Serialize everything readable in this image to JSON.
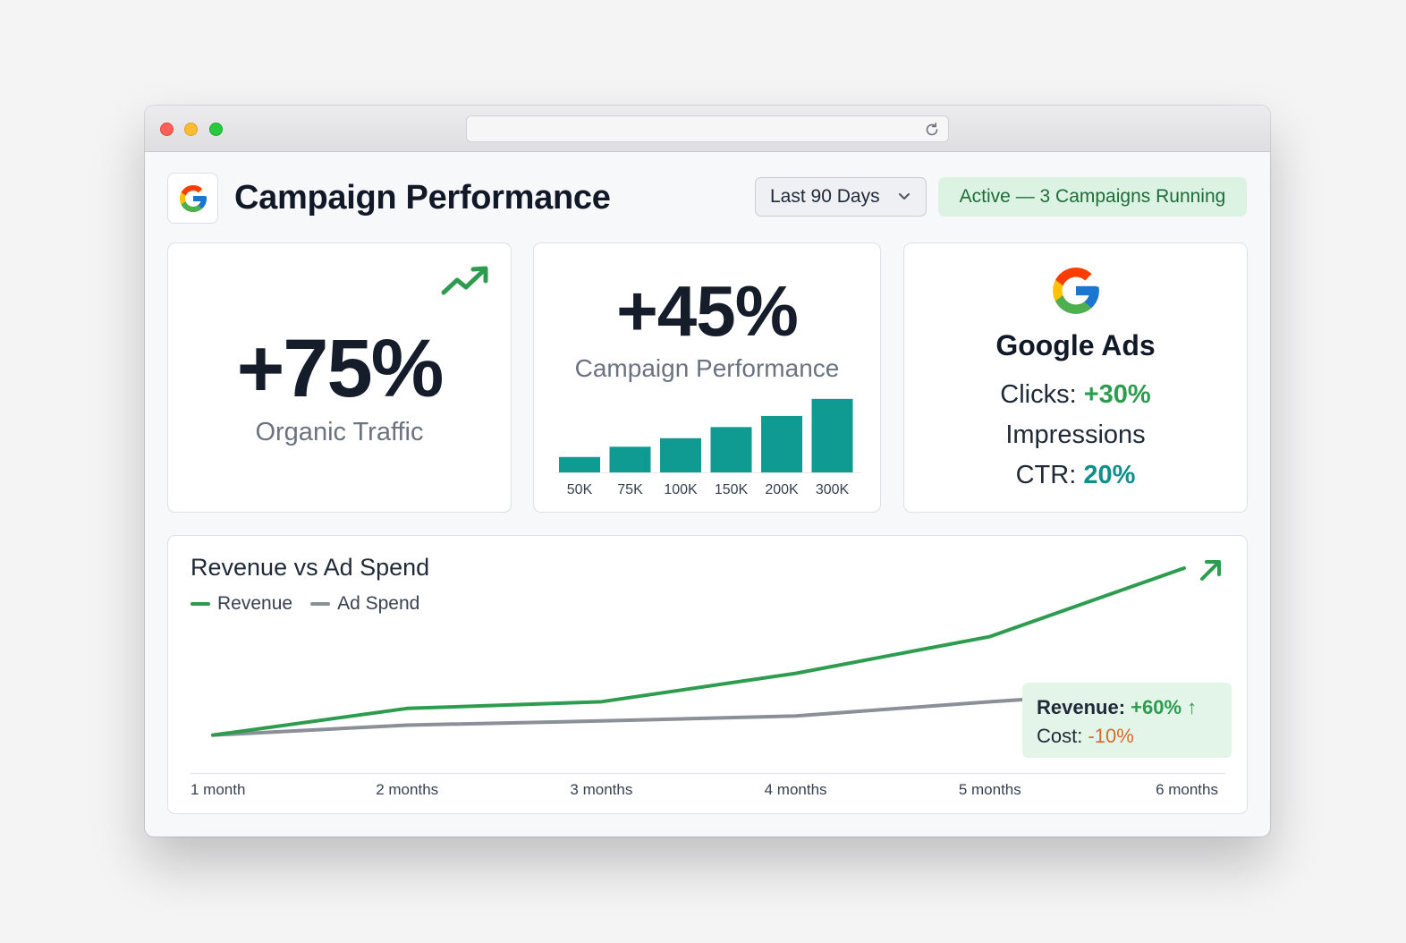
{
  "header": {
    "title": "Campaign Performance",
    "date_range": "Last 90 Days",
    "status": "Active — 3 Campaigns Running"
  },
  "organic": {
    "value": "+75%",
    "label": "Organic Traffic"
  },
  "campaign": {
    "value": "+45%",
    "label": "Campaign Performance"
  },
  "google_ads": {
    "brand": "Google Ads",
    "clicks_label": "Clicks: ",
    "clicks_value": "+30%",
    "impressions_label": "Impressions",
    "ctr_label": "CTR: ",
    "ctr_value": "20%"
  },
  "revenue_chart": {
    "title": "Revenue vs Ad Spend",
    "legend_revenue": "Revenue",
    "legend_spend": "Ad Spend",
    "callout_revenue_label": "Revenue: ",
    "callout_revenue_value": "+60% ↑",
    "callout_cost_label": "Cost: ",
    "callout_cost_value": "-10%"
  },
  "colors": {
    "accent_green": "#2e9c4e",
    "teal": "#0f9a92",
    "spend_gray": "#8a8f98",
    "negative": "#d86a2a"
  },
  "chart_data": [
    {
      "type": "bar",
      "categories": [
        "50K",
        "75K",
        "100K",
        "150K",
        "200K",
        "300K"
      ],
      "values": [
        18,
        30,
        40,
        53,
        66,
        86
      ],
      "ylim": [
        0,
        90
      ],
      "grid": false
    },
    {
      "type": "line",
      "x": [
        "1 month",
        "2 months",
        "3 months",
        "4 months",
        "5 months",
        "6 months"
      ],
      "series": [
        {
          "name": "Revenue",
          "values": [
            10,
            42,
            50,
            84,
            128,
            210
          ]
        },
        {
          "name": "Ad Spend",
          "values": [
            10,
            22,
            27,
            33,
            50,
            65
          ]
        }
      ],
      "ylim": [
        0,
        240
      ],
      "grid": false,
      "legend": "top-left"
    }
  ]
}
